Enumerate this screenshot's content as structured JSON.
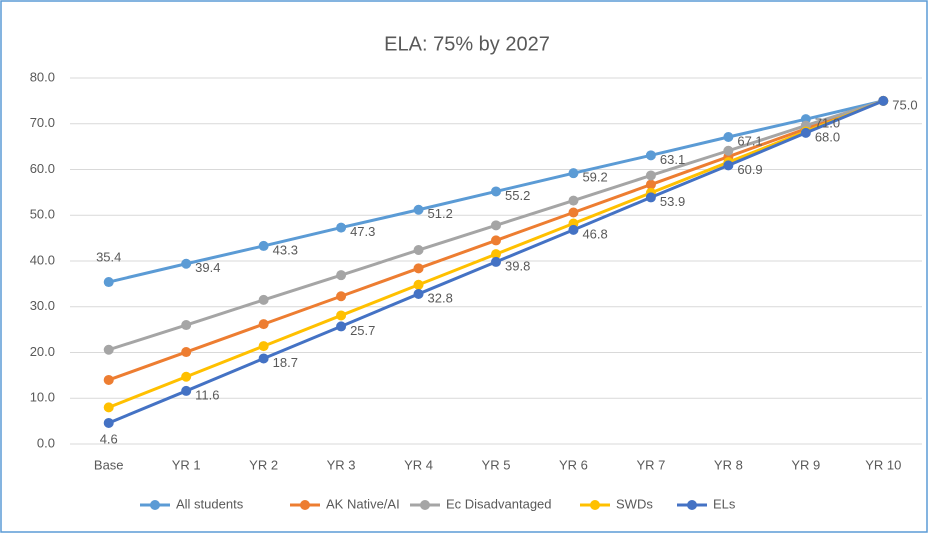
{
  "chart_data": {
    "type": "line",
    "title": "ELA: 75% by 2027",
    "categories": [
      "Base",
      "YR 1",
      "YR 2",
      "YR 3",
      "YR 4",
      "YR 5",
      "YR 6",
      "YR 7",
      "YR 8",
      "YR 9",
      "YR 10"
    ],
    "ylim": [
      0,
      80
    ],
    "yticks": [
      {
        "value": 0,
        "label": "0.0"
      },
      {
        "value": 10,
        "label": "10.0"
      },
      {
        "value": 20,
        "label": "20.0"
      },
      {
        "value": 30,
        "label": "30.0"
      },
      {
        "value": 40,
        "label": "40.0"
      },
      {
        "value": 50,
        "label": "50.0"
      },
      {
        "value": 60,
        "label": "60.0"
      },
      {
        "value": 70,
        "label": "70.0"
      },
      {
        "value": 80,
        "label": "80.0"
      }
    ],
    "grid": true,
    "legend": "bottom",
    "series": [
      {
        "name": "All students",
        "color": "#5b9bd5",
        "values": [
          35.4,
          39.4,
          43.3,
          47.3,
          51.2,
          55.2,
          59.2,
          63.1,
          67.1,
          71.0,
          75.0
        ],
        "value_labels": [
          "35.4",
          "39.4",
          "43.3",
          "47.3",
          "51.2",
          "55.2",
          "59.2",
          "63.1",
          "67.1",
          "71.0",
          null
        ]
      },
      {
        "name": "AK Native/AI",
        "color": "#ed7d31",
        "values": [
          14,
          20.1,
          26.2,
          32.3,
          38.4,
          44.5,
          50.6,
          56.7,
          62.8,
          68.9,
          75
        ]
      },
      {
        "name": "Ec Disadvantaged",
        "color": "#a5a5a5",
        "values": [
          20.6,
          26.0,
          31.5,
          36.9,
          42.4,
          47.8,
          53.2,
          58.7,
          64.1,
          69.6,
          75.0
        ]
      },
      {
        "name": "SWDs",
        "color": "#ffc000",
        "values": [
          8,
          14.7,
          21.4,
          28.1,
          34.8,
          41.5,
          48.2,
          54.9,
          61.6,
          68.3,
          75
        ]
      },
      {
        "name": "ELs",
        "color": "#4472c4",
        "values": [
          4.6,
          11.6,
          18.7,
          25.7,
          32.8,
          39.8,
          46.8,
          53.9,
          60.9,
          68.0,
          75.0
        ],
        "value_labels": [
          "4.6",
          "11.6",
          "18.7",
          "25.7",
          "32.8",
          "39.8",
          "46.8",
          "53.9",
          "60.9",
          "68.0",
          "75.0"
        ]
      }
    ]
  }
}
